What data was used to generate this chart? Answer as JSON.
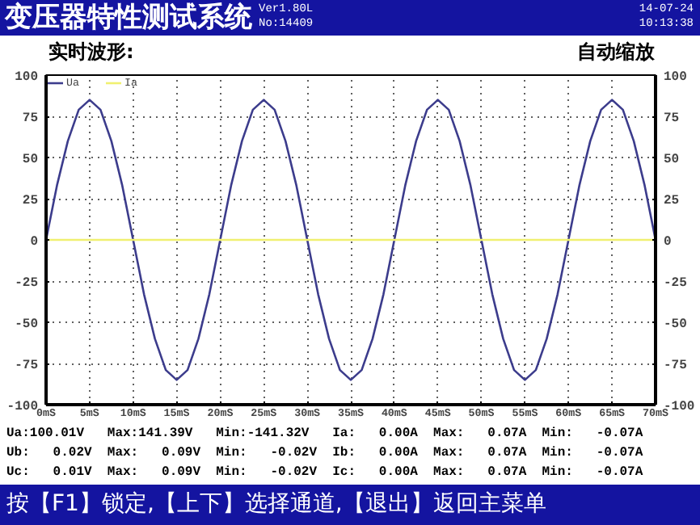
{
  "chart_data": {
    "type": "line",
    "title": "变压器特性测试系统",
    "subtitle": "实时波形:",
    "annotations": [
      "Ver1.80L",
      "No:14409",
      "14-07-24",
      "10:13:38",
      "自动缩放",
      "Ua:100.01V",
      "Max:141.39V",
      "Min:-141.32V",
      "Ia:   0.00A",
      "Max:   0.07A",
      "Min:   -0.07A",
      "Ub:   0.02V",
      "Max:   0.09V",
      "Min:   -0.02V",
      "Ib:   0.00A",
      "Max:   0.07A",
      "Min:   -0.07A",
      "Uc:   0.01V",
      "Max:   0.09V",
      "Min:   -0.02V",
      "Ic:   0.00A",
      "Max:   0.07A",
      "Min:   -0.07A",
      "按【F1】锁定,【上下】选择通道,【退出】返回主菜单"
    ],
    "x": [
      0,
      1.25,
      2.5,
      3.75,
      5,
      6.25,
      7.5,
      8.75,
      10,
      11.25,
      12.5,
      13.75,
      15,
      16.25,
      17.5,
      18.75,
      20,
      21.25,
      22.5,
      23.75,
      25,
      26.25,
      27.5,
      28.75,
      30,
      31.25,
      32.5,
      33.75,
      35,
      36.25,
      37.5,
      38.75,
      40,
      41.25,
      42.5,
      43.75,
      45,
      46.25,
      47.5,
      48.75,
      50,
      51.25,
      52.5,
      53.75,
      55,
      56.25,
      57.5,
      58.75,
      60,
      61.25,
      62.5,
      63.75,
      65,
      66.25,
      67.5,
      68.75,
      70
    ],
    "series": [
      {
        "name": "Ua",
        "color": "#3c3c8c",
        "values": [
          0,
          33,
          60,
          79,
          85,
          79,
          60,
          33,
          0,
          -33,
          -60,
          -79,
          -85,
          -79,
          -60,
          -33,
          0,
          33,
          60,
          79,
          85,
          79,
          60,
          33,
          0,
          -33,
          -60,
          -79,
          -85,
          -79,
          -60,
          -33,
          0,
          33,
          60,
          79,
          85,
          79,
          60,
          33,
          0,
          -33,
          -60,
          -79,
          -85,
          -79,
          -60,
          -33,
          0,
          33,
          60,
          79,
          85,
          79,
          60,
          33,
          0
        ]
      },
      {
        "name": "Ia",
        "color": "#f0f070",
        "x": [
          0,
          70
        ],
        "values": [
          0,
          0
        ]
      }
    ],
    "xlim": [
      0,
      70
    ],
    "ylim": [
      -100,
      100
    ],
    "xticks": [
      {
        "value": 0,
        "label": "0mS"
      },
      {
        "value": 5,
        "label": "5mS"
      },
      {
        "value": 10,
        "label": "10mS"
      },
      {
        "value": 15,
        "label": "15mS"
      },
      {
        "value": 20,
        "label": "20mS"
      },
      {
        "value": 25,
        "label": "25mS"
      },
      {
        "value": 30,
        "label": "30mS"
      },
      {
        "value": 35,
        "label": "35mS"
      },
      {
        "value": 40,
        "label": "40mS"
      },
      {
        "value": 45,
        "label": "45mS"
      },
      {
        "value": 50,
        "label": "50mS"
      },
      {
        "value": 55,
        "label": "55mS"
      },
      {
        "value": 60,
        "label": "60mS"
      },
      {
        "value": 65,
        "label": "65mS"
      },
      {
        "value": 70,
        "label": "70mS"
      }
    ],
    "yticks": [
      -100,
      -75,
      -50,
      -25,
      0,
      25,
      50,
      75,
      100
    ],
    "y2lim": [
      -100,
      100
    ],
    "y2ticks": [
      -100,
      -75,
      -50,
      -25,
      0,
      25,
      50,
      75,
      100
    ],
    "grid": true,
    "legend": "top left",
    "marker": "none",
    "line_style": "solid"
  }
}
